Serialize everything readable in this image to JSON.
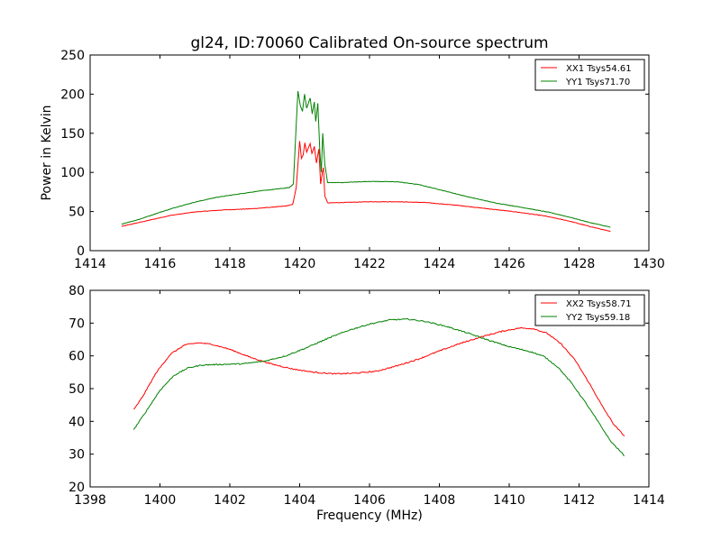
{
  "chart_data": [
    {
      "type": "line",
      "title": "gl24, ID:70060 Calibrated On-source spectrum",
      "xlabel": "",
      "ylabel": "Power in Kelvin",
      "xlim": [
        1414,
        1430
      ],
      "ylim": [
        0,
        250
      ],
      "xticks": [
        1414,
        1416,
        1418,
        1420,
        1422,
        1424,
        1426,
        1428,
        1430
      ],
      "yticks": [
        0,
        50,
        100,
        150,
        200,
        250
      ],
      "legend_position": "top-right",
      "series": [
        {
          "name": "XX1 Tsys54.61",
          "color": "#ff0000",
          "points": [
            [
              1414.9,
              31
            ],
            [
              1415.3,
              35
            ],
            [
              1415.8,
              40
            ],
            [
              1416.3,
              45
            ],
            [
              1417.0,
              49.5
            ],
            [
              1417.8,
              52
            ],
            [
              1418.6,
              53.5
            ],
            [
              1419.2,
              55.5
            ],
            [
              1419.6,
              57
            ],
            [
              1419.8,
              59
            ],
            [
              1419.9,
              80
            ],
            [
              1420.0,
              140
            ],
            [
              1420.05,
              118
            ],
            [
              1420.1,
              122
            ],
            [
              1420.15,
              138
            ],
            [
              1420.2,
              126
            ],
            [
              1420.3,
              137
            ],
            [
              1420.35,
              124
            ],
            [
              1420.42,
              133
            ],
            [
              1420.48,
              112
            ],
            [
              1420.55,
              130
            ],
            [
              1420.6,
              85
            ],
            [
              1420.65,
              100
            ],
            [
              1420.68,
              106
            ],
            [
              1420.72,
              70
            ],
            [
              1420.8,
              61
            ],
            [
              1421.2,
              61.5
            ],
            [
              1422.0,
              62.5
            ],
            [
              1422.8,
              62.5
            ],
            [
              1423.6,
              61.5
            ],
            [
              1424.5,
              58
            ],
            [
              1425.4,
              53.5
            ],
            [
              1426.2,
              49.5
            ],
            [
              1427.0,
              44.5
            ],
            [
              1427.7,
              38
            ],
            [
              1428.3,
              31
            ],
            [
              1428.9,
              24.5
            ]
          ]
        },
        {
          "name": "YY1 Tsys71.70",
          "color": "#008000",
          "points": [
            [
              1414.9,
              34
            ],
            [
              1415.4,
              40
            ],
            [
              1416.0,
              49
            ],
            [
              1416.5,
              56
            ],
            [
              1417.0,
              62
            ],
            [
              1417.6,
              68
            ],
            [
              1418.2,
              72
            ],
            [
              1418.8,
              76
            ],
            [
              1419.3,
              78.5
            ],
            [
              1419.7,
              80.5
            ],
            [
              1419.82,
              85
            ],
            [
              1419.9,
              160
            ],
            [
              1419.95,
              204
            ],
            [
              1420.02,
              185
            ],
            [
              1420.08,
              178
            ],
            [
              1420.14,
              200
            ],
            [
              1420.2,
              182
            ],
            [
              1420.3,
              195
            ],
            [
              1420.36,
              175
            ],
            [
              1420.42,
              190
            ],
            [
              1420.46,
              165
            ],
            [
              1420.52,
              188
            ],
            [
              1420.58,
              125
            ],
            [
              1420.62,
              100
            ],
            [
              1420.66,
              150
            ],
            [
              1420.72,
              110
            ],
            [
              1420.8,
              87
            ],
            [
              1421.2,
              87
            ],
            [
              1422.0,
              88.5
            ],
            [
              1422.8,
              88
            ],
            [
              1423.4,
              84.5
            ],
            [
              1424.0,
              78
            ],
            [
              1424.8,
              69
            ],
            [
              1425.6,
              61
            ],
            [
              1426.4,
              55
            ],
            [
              1427.2,
              48.5
            ],
            [
              1427.8,
              42
            ],
            [
              1428.3,
              36
            ],
            [
              1428.9,
              30
            ]
          ]
        }
      ]
    },
    {
      "type": "line",
      "title": "",
      "xlabel": "Frequency (MHz)",
      "ylabel": "",
      "xlim": [
        1398,
        1414
      ],
      "ylim": [
        20,
        80
      ],
      "xticks": [
        1398,
        1400,
        1402,
        1404,
        1406,
        1408,
        1410,
        1412,
        1414
      ],
      "yticks": [
        20,
        30,
        40,
        50,
        60,
        70,
        80
      ],
      "legend_position": "top-right",
      "series": [
        {
          "name": "XX2 Tsys58.71",
          "color": "#ff0000",
          "points": [
            [
              1399.25,
              43.5
            ],
            [
              1399.5,
              47.5
            ],
            [
              1399.9,
              55
            ],
            [
              1400.3,
              60.5
            ],
            [
              1400.7,
              63.3
            ],
            [
              1401.1,
              64
            ],
            [
              1401.5,
              63.5
            ],
            [
              1402.0,
              62
            ],
            [
              1402.6,
              59.5
            ],
            [
              1403.2,
              57.5
            ],
            [
              1403.8,
              56
            ],
            [
              1404.4,
              55
            ],
            [
              1405.0,
              54.5
            ],
            [
              1405.6,
              54.7
            ],
            [
              1406.2,
              55.3
            ],
            [
              1406.8,
              57
            ],
            [
              1407.4,
              59
            ],
            [
              1408.0,
              61.5
            ],
            [
              1408.6,
              63.8
            ],
            [
              1409.2,
              65.8
            ],
            [
              1409.8,
              67.5
            ],
            [
              1410.3,
              68.5
            ],
            [
              1410.7,
              68.3
            ],
            [
              1411.1,
              66.8
            ],
            [
              1411.5,
              63.5
            ],
            [
              1411.9,
              58.5
            ],
            [
              1412.3,
              51.5
            ],
            [
              1412.7,
              44
            ],
            [
              1413.0,
              39
            ],
            [
              1413.3,
              35.5
            ]
          ]
        },
        {
          "name": "YY2 Tsys59.18",
          "color": "#008000",
          "points": [
            [
              1399.25,
              37.5
            ],
            [
              1399.6,
              43
            ],
            [
              1400.0,
              49.5
            ],
            [
              1400.4,
              54
            ],
            [
              1400.8,
              56.3
            ],
            [
              1401.2,
              57.2
            ],
            [
              1401.8,
              57.4
            ],
            [
              1402.4,
              57.6
            ],
            [
              1403.0,
              58.4
            ],
            [
              1403.6,
              60
            ],
            [
              1404.2,
              62.5
            ],
            [
              1404.8,
              65.3
            ],
            [
              1405.4,
              67.8
            ],
            [
              1406.0,
              69.7
            ],
            [
              1406.6,
              71
            ],
            [
              1407.1,
              71.2
            ],
            [
              1407.6,
              70.5
            ],
            [
              1408.2,
              69
            ],
            [
              1408.8,
              67
            ],
            [
              1409.4,
              64.8
            ],
            [
              1410.0,
              62.8
            ],
            [
              1410.6,
              61.3
            ],
            [
              1411.0,
              59.8
            ],
            [
              1411.4,
              56.5
            ],
            [
              1411.8,
              51.5
            ],
            [
              1412.2,
              45.5
            ],
            [
              1412.6,
              39
            ],
            [
              1412.9,
              34
            ],
            [
              1413.3,
              29.5
            ]
          ]
        }
      ]
    }
  ]
}
